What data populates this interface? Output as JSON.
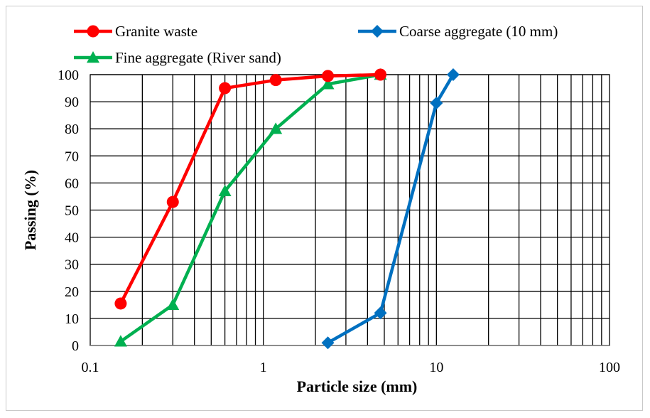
{
  "chart_data": {
    "type": "line",
    "title": "",
    "xlabel": "Particle size (mm)",
    "ylabel": "Passing (%)",
    "xscale": "log",
    "xlim": [
      0.1,
      100
    ],
    "ylim": [
      0,
      100
    ],
    "grid": true,
    "legend_position": "top",
    "x_ticks": [
      {
        "value": 0.1,
        "label": "0.1"
      },
      {
        "value": 1,
        "label": "1"
      },
      {
        "value": 10,
        "label": "10"
      },
      {
        "value": 100,
        "label": "100"
      }
    ],
    "y_ticks": [
      {
        "value": 0,
        "label": "0"
      },
      {
        "value": 10,
        "label": "10"
      },
      {
        "value": 20,
        "label": "20"
      },
      {
        "value": 30,
        "label": "30"
      },
      {
        "value": 40,
        "label": "40"
      },
      {
        "value": 50,
        "label": "50"
      },
      {
        "value": 60,
        "label": "60"
      },
      {
        "value": 70,
        "label": "70"
      },
      {
        "value": 80,
        "label": "80"
      },
      {
        "value": 90,
        "label": "90"
      },
      {
        "value": 100,
        "label": "100"
      }
    ],
    "series": [
      {
        "name": "Granite waste",
        "color": "#ff0000",
        "marker": "circle",
        "x": [
          0.15,
          0.3,
          0.6,
          1.18,
          2.36,
          4.75
        ],
        "y": [
          15.5,
          53,
          95,
          98,
          99.5,
          100
        ]
      },
      {
        "name": "Coarse aggregate (10 mm)",
        "color": "#0070c0",
        "marker": "diamond",
        "x": [
          2.36,
          4.75,
          10,
          12.5
        ],
        "y": [
          1,
          12,
          89.5,
          100
        ]
      },
      {
        "name": "Fine aggregate (River sand)",
        "color": "#00b050",
        "marker": "triangle",
        "x": [
          0.15,
          0.3,
          0.6,
          1.18,
          2.36,
          4.75
        ],
        "y": [
          1.5,
          15,
          57,
          80,
          96.5,
          100
        ]
      }
    ]
  }
}
